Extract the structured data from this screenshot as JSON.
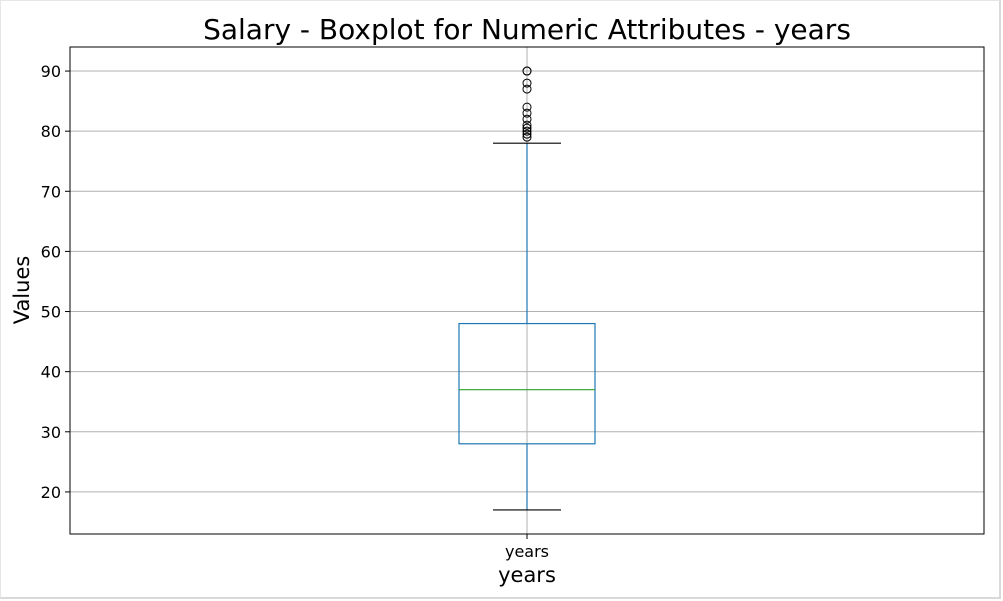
{
  "chart_data": {
    "type": "box",
    "title": "Salary - Boxplot for Numeric Attributes - years",
    "xlabel": "years",
    "ylabel": "Values",
    "categories": [
      "years"
    ],
    "ylim": [
      13,
      94
    ],
    "yticks": [
      20,
      30,
      40,
      50,
      60,
      70,
      80,
      90
    ],
    "grid": true,
    "box": {
      "name": "years",
      "whisker_low": 17,
      "q1": 28,
      "median": 37,
      "q3": 48,
      "whisker_high": 78,
      "outliers": [
        79,
        79.5,
        80,
        80.5,
        81,
        82,
        83,
        84,
        87,
        88,
        90,
        90
      ]
    },
    "colors": {
      "box": "#1f77b4",
      "median": "#2ca02c",
      "whisker_cap": "#000000",
      "grid": "#b0b0b0",
      "outlier": "#000000"
    }
  }
}
